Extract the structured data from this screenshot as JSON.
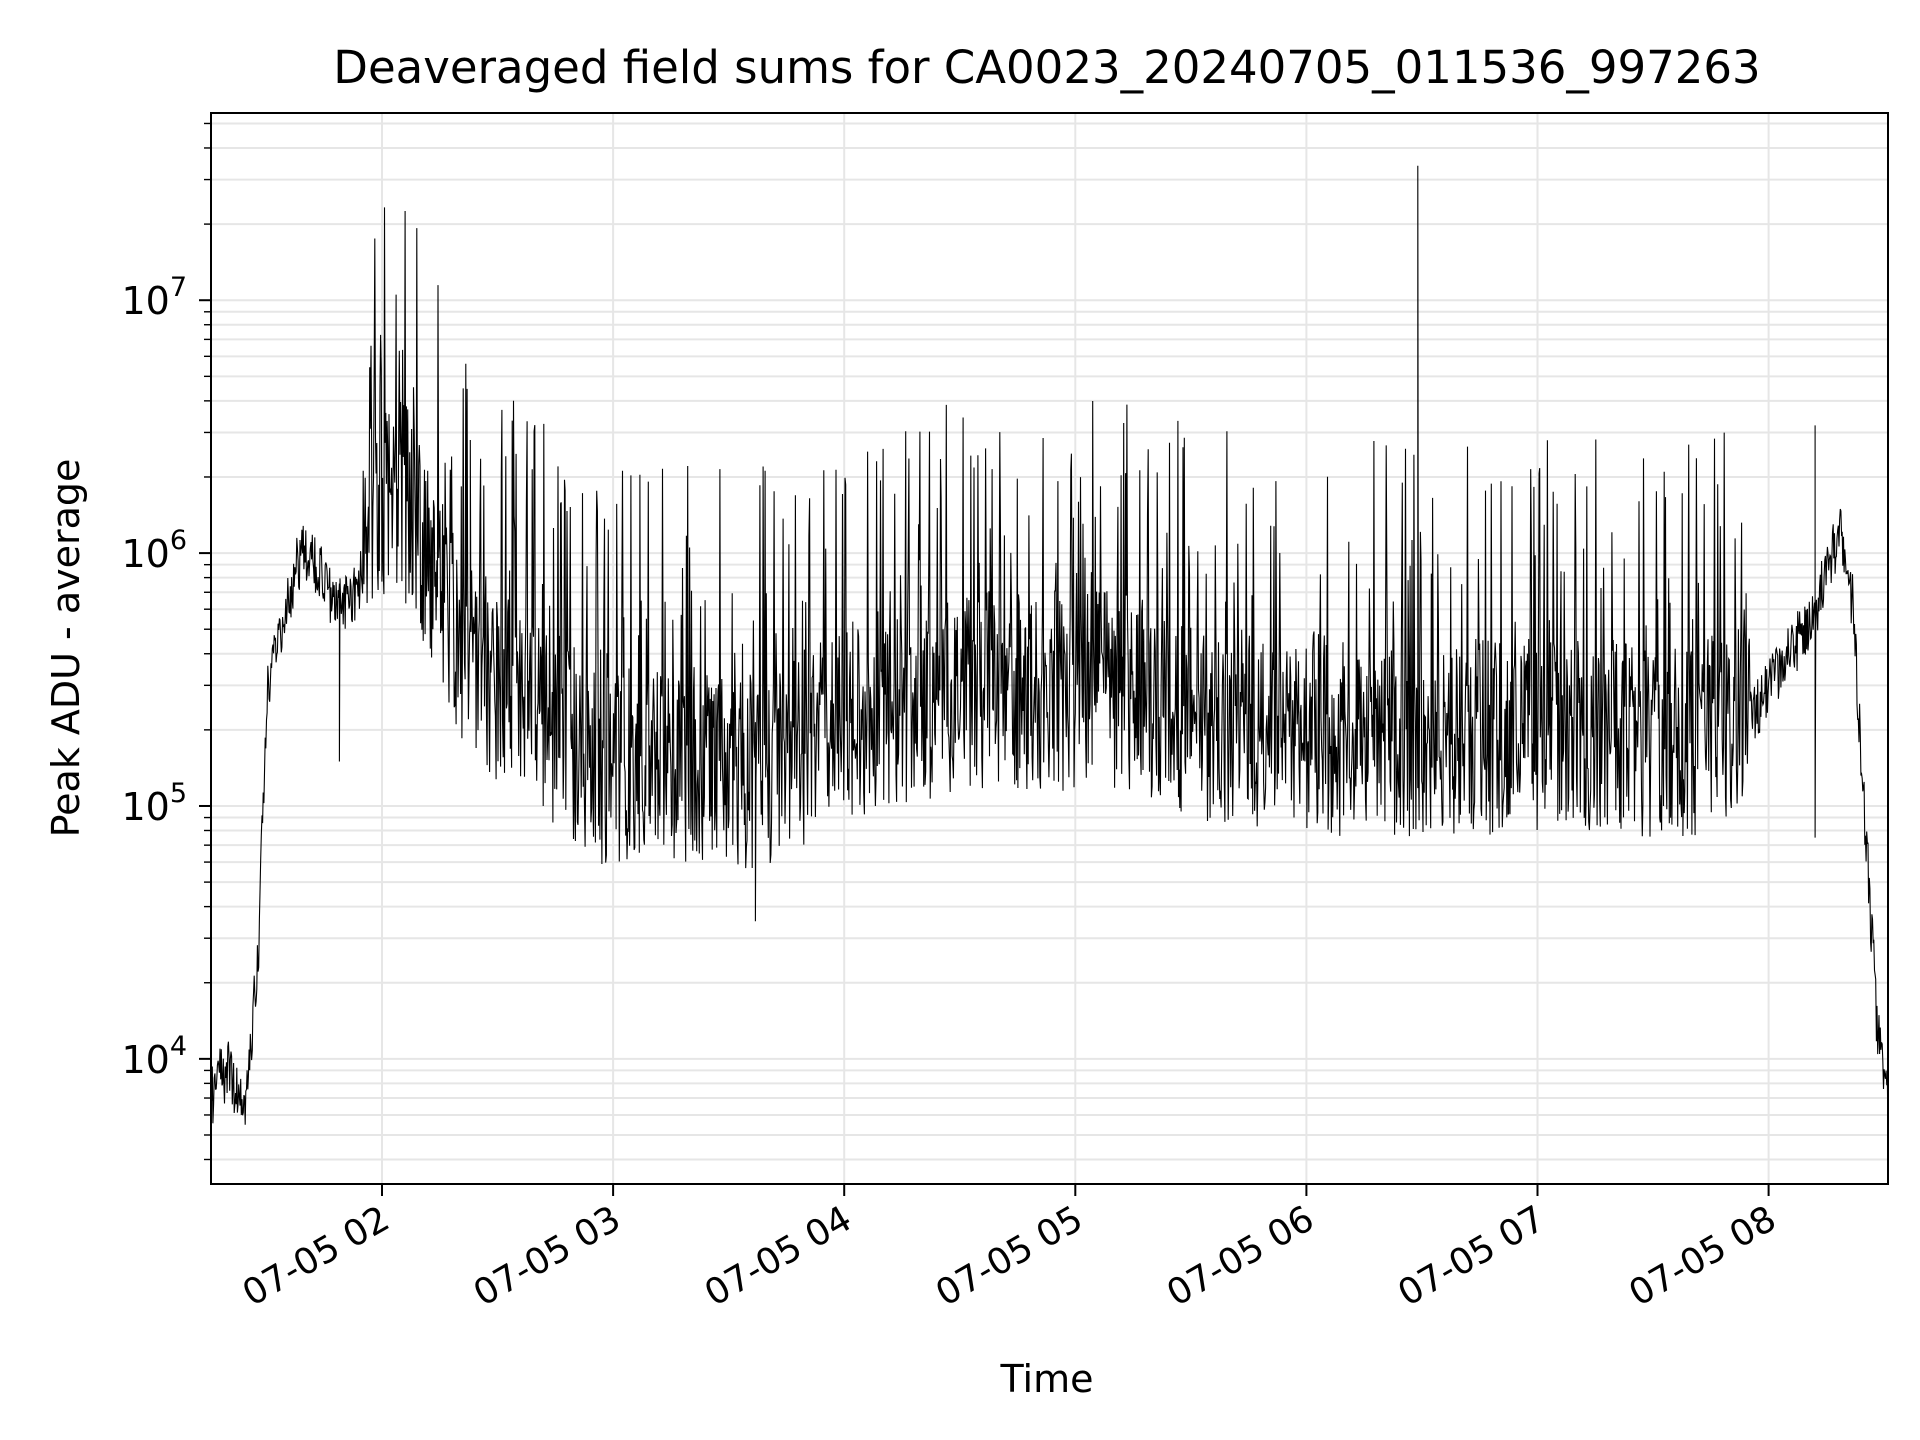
{
  "chart_data": {
    "type": "line",
    "title": "Deaveraged field sums for CA0023_20240705_011536_997263",
    "xlabel": "Time",
    "ylabel": "Peak ADU - average",
    "y_scale": "log",
    "ylim": [
      3200,
      55000000
    ],
    "xlim": [
      "2024-07-05 01:15:36",
      "2024-07-05 08:31:00"
    ],
    "grid": true,
    "line_color": "#000000",
    "grid_color": "#e6e6e6",
    "x_ticks": [
      {
        "t": "2024-07-05 02:00",
        "label": "07-05 02"
      },
      {
        "t": "2024-07-05 03:00",
        "label": "07-05 03"
      },
      {
        "t": "2024-07-05 04:00",
        "label": "07-05 04"
      },
      {
        "t": "2024-07-05 05:00",
        "label": "07-05 05"
      },
      {
        "t": "2024-07-05 06:00",
        "label": "07-05 06"
      },
      {
        "t": "2024-07-05 07:00",
        "label": "07-05 07"
      },
      {
        "t": "2024-07-05 08:00",
        "label": "07-05 08"
      }
    ],
    "y_ticks": [
      {
        "v": 10000,
        "base": "10",
        "exp": "4"
      },
      {
        "v": 100000,
        "base": "10",
        "exp": "5"
      },
      {
        "v": 1000000,
        "base": "10",
        "exp": "6"
      },
      {
        "v": 10000000,
        "base": "10",
        "exp": "7"
      }
    ],
    "series": [
      {
        "x": [
          "01:15:36",
          "01:18",
          "01:20",
          "01:22",
          "01:24",
          "01:26",
          "01:28",
          "01:30",
          "01:32",
          "01:34",
          "01:36",
          "01:38",
          "01:40",
          "01:43",
          "01:46",
          "01:50",
          "01:55",
          "02:00",
          "02:05",
          "02:10",
          "02:15",
          "02:20",
          "02:25",
          "02:30",
          "02:35",
          "02:40",
          "02:45",
          "02:50",
          "02:55",
          "03:00",
          "03:05",
          "03:10",
          "03:15",
          "03:20",
          "03:25",
          "03:30",
          "03:35",
          "03:40",
          "03:45",
          "03:50",
          "03:55",
          "04:00",
          "04:10",
          "04:20",
          "04:30",
          "04:40",
          "04:50",
          "05:00",
          "05:10",
          "05:20",
          "05:30",
          "05:40",
          "05:50",
          "06:00",
          "06:10",
          "06:20",
          "06:25",
          "06:30",
          "06:40",
          "06:50",
          "07:00",
          "07:10",
          "07:20",
          "07:30",
          "07:40",
          "07:50",
          "08:00",
          "08:05",
          "08:10",
          "08:12",
          "08:15",
          "08:18",
          "08:20",
          "08:22",
          "08:24",
          "08:26",
          "08:28",
          "08:30",
          "08:31"
        ],
        "y": [
          7000,
          8500,
          9000,
          7500,
          6000,
          12000,
          30000,
          250000,
          450000,
          500000,
          700000,
          900000,
          1000000,
          900000,
          700000,
          600000,
          800000,
          1100000,
          1200000,
          800000,
          500000,
          300000,
          250000,
          200000,
          180000,
          160000,
          140000,
          120000,
          100000,
          100000,
          100000,
          100000,
          100000,
          100000,
          100000,
          95000,
          95000,
          100000,
          110000,
          120000,
          130000,
          150000,
          170000,
          180000,
          200000,
          200000,
          200000,
          200000,
          200000,
          180000,
          150000,
          150000,
          140000,
          140000,
          130000,
          130000,
          130000,
          130000,
          130000,
          130000,
          130000,
          130000,
          130000,
          130000,
          130000,
          150000,
          300000,
          400000,
          500000,
          600000,
          800000,
          1200000,
          1000000,
          600000,
          150000,
          50000,
          15000,
          8000,
          6000
        ]
      }
    ],
    "annotations": [
      {
        "t": "01:49",
        "v": 150000
      },
      {
        "t": "02:23",
        "v": 2800000
      },
      {
        "t": "06:29",
        "v": 34000000
      },
      {
        "t": "08:12",
        "v": 3200000
      },
      {
        "t": "08:12",
        "v": 75000
      },
      {
        "t": "03:37",
        "v": 35000
      }
    ]
  }
}
